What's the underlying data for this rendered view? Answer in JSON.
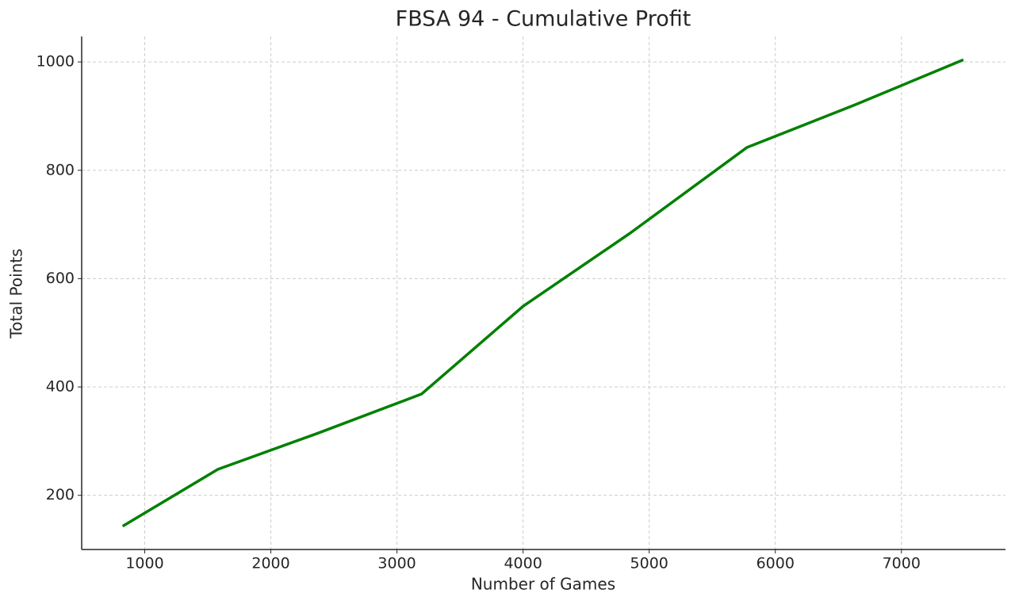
{
  "chart_data": {
    "type": "line",
    "title": "FBSA 94 - Cumulative Profit",
    "x_label": "Number of Games",
    "y_label": "Total Points",
    "x": [
      825,
      1580,
      2365,
      3195,
      4000,
      4849,
      5774,
      6623,
      7491
    ],
    "series": [
      {
        "name": "Cumulative Profit",
        "color": "#008000",
        "values": [
          143,
          248,
          314,
          387,
          549,
          684,
          842,
          920,
          1004
        ]
      }
    ],
    "xlim": [
      500,
      7825
    ],
    "xticks": [
      1000,
      2000,
      3000,
      4000,
      5000,
      6000,
      7000
    ],
    "ylim": [
      100,
      1047
    ],
    "yticks": [
      200,
      400,
      600,
      800,
      1000
    ],
    "grid": true
  }
}
